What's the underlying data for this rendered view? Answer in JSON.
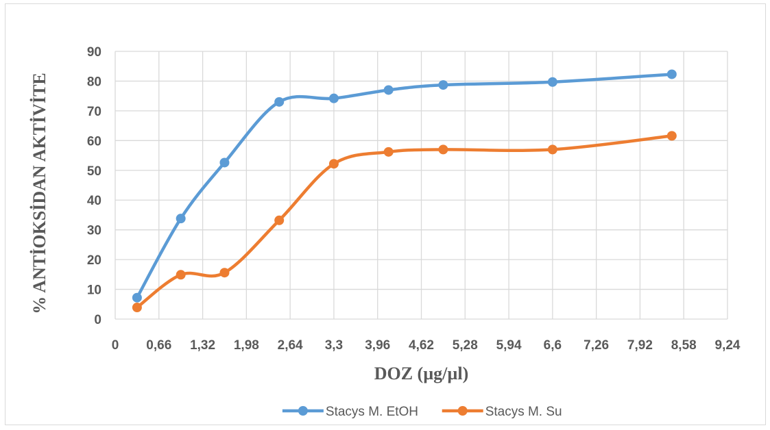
{
  "chart_data": {
    "type": "line",
    "title": "",
    "xlabel": "DOZ (µg/µl)",
    "ylabel": "% ANTİOKSİDAN AKTİVİTE",
    "xlim": [
      0,
      9.24
    ],
    "ylim": [
      0,
      90
    ],
    "x_ticks": [
      "0",
      "0,66",
      "1,32",
      "1,98",
      "2,64",
      "3,3",
      "3,96",
      "4,62",
      "5,28",
      "5,94",
      "6,6",
      "7,26",
      "7,92",
      "8,58",
      "9,24"
    ],
    "y_ticks": [
      "0",
      "10",
      "20",
      "30",
      "40",
      "50",
      "60",
      "70",
      "80",
      "90"
    ],
    "grid": true,
    "smooth": true,
    "legend_position": "bottom",
    "series": [
      {
        "name": "Stacys M. EtOH",
        "color": "#5b9bd5",
        "points": [
          [
            0.33,
            7.2
          ],
          [
            0.99,
            33.8
          ],
          [
            1.65,
            52.6
          ],
          [
            2.475,
            73.0
          ],
          [
            3.3,
            74.2
          ],
          [
            4.125,
            77.0
          ],
          [
            4.95,
            78.7
          ],
          [
            6.6,
            79.7
          ],
          [
            8.4,
            82.3
          ]
        ]
      },
      {
        "name": "Stacys M. Su",
        "color": "#ed7d31",
        "points": [
          [
            0.33,
            3.9
          ],
          [
            0.99,
            14.9
          ],
          [
            1.65,
            15.6
          ],
          [
            2.475,
            33.2
          ],
          [
            3.3,
            52.2
          ],
          [
            4.125,
            56.2
          ],
          [
            4.95,
            57.0
          ],
          [
            6.6,
            57.0
          ],
          [
            8.4,
            61.6
          ]
        ]
      }
    ]
  }
}
